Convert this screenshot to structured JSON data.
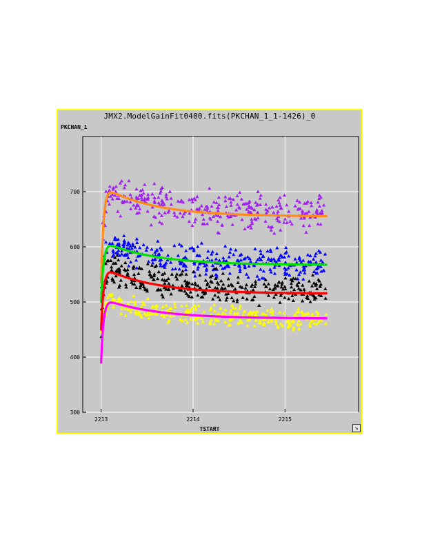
{
  "chart_data": {
    "type": "scatter",
    "title": "JMX2.ModelGainFit0400.fits(PKCHAN_1_1-1426)_0",
    "xlabel": "TSTART",
    "ylabel": "PKCHAN_1",
    "xlim": [
      2212.8,
      2215.8
    ],
    "ylim": [
      300,
      800
    ],
    "xticks": [
      2213,
      2214,
      2215
    ],
    "yticks": [
      300,
      400,
      500,
      600,
      700
    ],
    "grid": true,
    "series": [
      {
        "color": "#a020f0",
        "marker": "triangle",
        "start": 540,
        "plateau": 700,
        "end": 662,
        "scatter": 28
      },
      {
        "color": "#0000ff",
        "marker": "triangle",
        "start": 500,
        "plateau": 605,
        "end": 568,
        "scatter": 22
      },
      {
        "color": "#000000",
        "marker": "triangle",
        "start": 445,
        "plateau": 560,
        "end": 520,
        "scatter": 24
      },
      {
        "color": "#ffff00",
        "marker": "triangle",
        "start": 430,
        "plateau": 505,
        "end": 470,
        "scatter": 16
      }
    ],
    "fits": [
      {
        "color": "#ff8c1a",
        "start": 535,
        "plateau": 703,
        "end": 655
      },
      {
        "color": "#00e000",
        "start": 500,
        "plateau": 605,
        "end": 567
      },
      {
        "color": "#ff0000",
        "start": 450,
        "plateau": 557,
        "end": 515
      },
      {
        "color": "#ff00ff",
        "start": 390,
        "plateau": 502,
        "end": 470
      }
    ],
    "x_start": 2213.0,
    "x_end": 2215.45
  }
}
